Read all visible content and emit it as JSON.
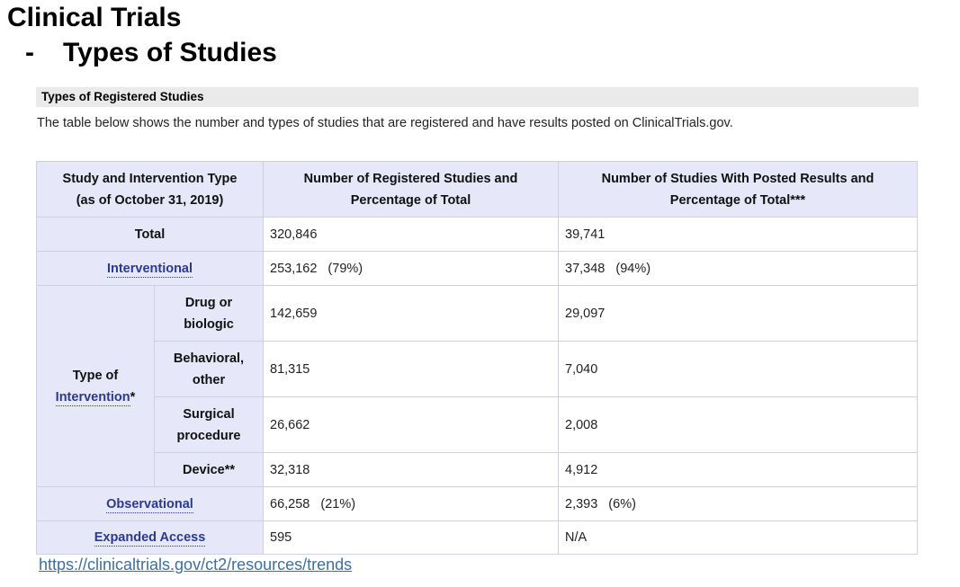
{
  "slide": {
    "title": "Clinical Trials",
    "bullet": "-",
    "subtitle": "Types of Studies"
  },
  "section": {
    "heading": "Types of Registered Studies",
    "intro": "The table below shows the number and types of studies that are registered and have results posted on ClinicalTrials.gov."
  },
  "table": {
    "headers": {
      "col1_line1": "Study and Intervention Type",
      "col1_line2": "(as of October 31, 2019)",
      "col2_line1": "Number of Registered Studies and",
      "col2_line2": "Percentage of Total",
      "col3_line1": "Number of Studies With Posted Results and",
      "col3_line2": "Percentage of Total***"
    },
    "total": {
      "label": "Total",
      "registered": "320,846",
      "posted": "39,741"
    },
    "interventional": {
      "label": "Interventional",
      "registered": "253,162",
      "registered_pct": "(79%)",
      "posted": "37,348",
      "posted_pct": "(94%)"
    },
    "type_group": {
      "line1": "Type of",
      "line2": "Intervention",
      "suffix": "*"
    },
    "drug": {
      "line1": "Drug or",
      "line2": "biologic",
      "registered": "142,659",
      "posted": "29,097"
    },
    "behavioral": {
      "line1": "Behavioral,",
      "line2": "other",
      "registered": "81,315",
      "posted": "7,040"
    },
    "surgical": {
      "line1": "Surgical",
      "line2": "procedure",
      "registered": "26,662",
      "posted": "2,008"
    },
    "device": {
      "label": "Device**",
      "registered": "32,318",
      "posted": "4,912"
    },
    "observational": {
      "label": "Observational",
      "registered": "66,258",
      "registered_pct": "(21%)",
      "posted": "2,393",
      "posted_pct": "(6%)"
    },
    "expanded": {
      "label": "Expanded Access",
      "registered": "595",
      "posted": "N/A"
    }
  },
  "source": {
    "url": "https://clinicaltrials.gov/ct2/resources/trends"
  }
}
